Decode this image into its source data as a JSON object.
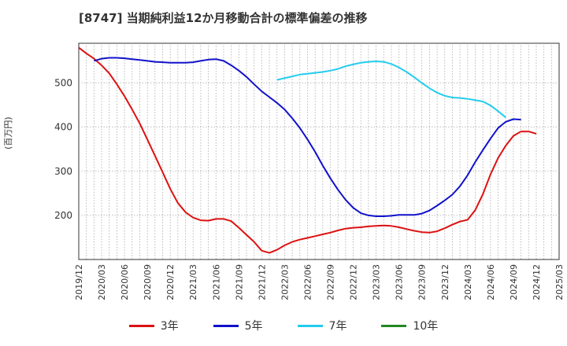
{
  "chart_data": {
    "type": "line",
    "title": "[8747]  当期純利益12か月移動合計の標準偏差の推移",
    "ylabel": "(百万円)",
    "xlabel": "",
    "ylim": [
      100,
      590
    ],
    "yticks": [
      200,
      300,
      400,
      500
    ],
    "grid": true,
    "x_start": "2019-12",
    "x_end": "2025-03",
    "xtick_labels": [
      "2019/12",
      "2020/03",
      "2020/06",
      "2020/09",
      "2020/12",
      "2021/03",
      "2021/06",
      "2021/09",
      "2021/12",
      "2022/03",
      "2022/06",
      "2022/09",
      "2022/12",
      "2023/03",
      "2023/06",
      "2023/09",
      "2023/12",
      "2024/03",
      "2024/06",
      "2024/09",
      "2024/12",
      "2025/03"
    ],
    "legend_position": "bottom",
    "series": [
      {
        "name": "3年",
        "color": "#dd1111",
        "start": "2019-12",
        "values": [
          580,
          567,
          555,
          540,
          522,
          497,
          470,
          440,
          408,
          372,
          335,
          298,
          260,
          228,
          207,
          195,
          189,
          188,
          192,
          192,
          187,
          172,
          156,
          140,
          120,
          115,
          122,
          132,
          140,
          145,
          149,
          153,
          157,
          161,
          166,
          170,
          172,
          173,
          175,
          176,
          177,
          176,
          173,
          169,
          165,
          162,
          161,
          164,
          171,
          179,
          186,
          190,
          212,
          248,
          293,
          330,
          358,
          380,
          390,
          390,
          385
        ]
      },
      {
        "name": "5年",
        "color": "#1111cc",
        "start": "2020-02",
        "values": [
          550,
          555,
          557,
          557,
          556,
          554,
          552,
          550,
          548,
          547,
          546,
          546,
          546,
          547,
          550,
          553,
          554,
          550,
          540,
          528,
          514,
          497,
          481,
          468,
          455,
          440,
          420,
          398,
          372,
          344,
          313,
          284,
          258,
          235,
          217,
          205,
          200,
          198,
          198,
          199,
          201,
          201,
          201,
          204,
          211,
          222,
          234,
          247,
          266,
          291,
          321,
          348,
          374,
          398,
          412,
          418,
          417
        ]
      },
      {
        "name": "7年",
        "color": "#22ccee",
        "start": "2022-02",
        "values": [
          507,
          511,
          515,
          519,
          521,
          523,
          525,
          528,
          532,
          538,
          542,
          546,
          548,
          549,
          548,
          543,
          535,
          525,
          513,
          500,
          488,
          478,
          471,
          467,
          466,
          464,
          461,
          458,
          449,
          436,
          422
        ]
      },
      {
        "name": "10年",
        "color": "#228822",
        "start": "2025-01",
        "values": []
      }
    ]
  }
}
